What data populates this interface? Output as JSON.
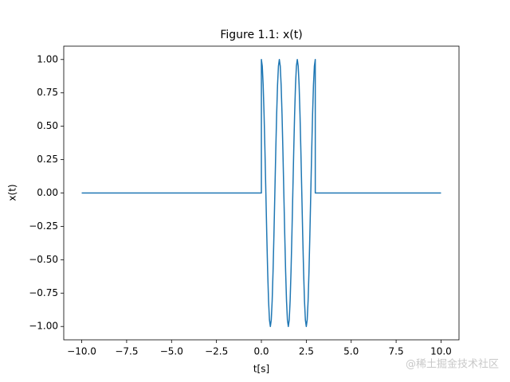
{
  "chart_data": {
    "type": "line",
    "title": "Figure 1.1: x(t)",
    "x_label": "t[s]",
    "y_label": "x(t)",
    "watermark": "@稀土掘金技术社区",
    "x": [
      -10,
      0,
      0,
      0.05,
      0.1,
      0.15,
      0.2,
      0.25,
      0.3,
      0.35,
      0.4,
      0.45,
      0.5,
      0.55,
      0.6,
      0.65,
      0.7,
      0.75,
      0.8,
      0.85,
      0.9,
      0.95,
      1,
      1.05,
      1.1,
      1.15,
      1.2,
      1.25,
      1.3,
      1.35,
      1.4,
      1.45,
      1.5,
      1.55,
      1.6,
      1.65,
      1.7,
      1.75,
      1.8,
      1.85,
      1.9,
      1.95,
      2,
      2.05,
      2.1,
      2.15,
      2.2,
      2.25,
      2.3,
      2.35,
      2.4,
      2.45,
      2.5,
      2.55,
      2.6,
      2.65,
      2.7,
      2.75,
      2.8,
      2.85,
      2.9,
      2.95,
      3,
      3,
      10
    ],
    "series": [
      {
        "color": "#1f77b4",
        "values": [
          0,
          0,
          1,
          0.951,
          0.809,
          0.588,
          0.309,
          0,
          -0.309,
          -0.588,
          -0.809,
          -0.951,
          -1,
          -0.951,
          -0.809,
          -0.588,
          -0.309,
          0,
          0.309,
          0.588,
          0.809,
          0.951,
          1,
          0.951,
          0.809,
          0.588,
          0.309,
          0,
          -0.309,
          -0.588,
          -0.809,
          -0.951,
          -1,
          -0.951,
          -0.809,
          -0.588,
          -0.309,
          0,
          0.309,
          0.588,
          0.809,
          0.951,
          1,
          0.951,
          0.809,
          0.588,
          0.309,
          0,
          -0.309,
          -0.588,
          -0.809,
          -0.951,
          -1,
          -0.951,
          -0.809,
          -0.588,
          -0.309,
          0,
          0.309,
          0.588,
          0.809,
          0.951,
          1,
          0,
          0
        ]
      }
    ],
    "xlim": [
      -11,
      11
    ],
    "ylim": [
      -1.1,
      1.1
    ],
    "xticks": [
      {
        "value": -10,
        "label": "−10.0"
      },
      {
        "value": -7.5,
        "label": "−7.5"
      },
      {
        "value": -5,
        "label": "−5.0"
      },
      {
        "value": -2.5,
        "label": "−2.5"
      },
      {
        "value": 0,
        "label": "0.0"
      },
      {
        "value": 2.5,
        "label": "2.5"
      },
      {
        "value": 5,
        "label": "5.0"
      },
      {
        "value": 7.5,
        "label": "7.5"
      },
      {
        "value": 10,
        "label": "10.0"
      }
    ],
    "yticks": [
      {
        "value": -1,
        "label": "−1.00"
      },
      {
        "value": -0.75,
        "label": "−0.75"
      },
      {
        "value": -0.5,
        "label": "−0.50"
      },
      {
        "value": -0.25,
        "label": "−0.25"
      },
      {
        "value": 0,
        "label": "0.00"
      },
      {
        "value": 0.25,
        "label": "0.25"
      },
      {
        "value": 0.5,
        "label": "0.50"
      },
      {
        "value": 0.75,
        "label": "0.75"
      },
      {
        "value": 1,
        "label": "1.00"
      }
    ]
  }
}
